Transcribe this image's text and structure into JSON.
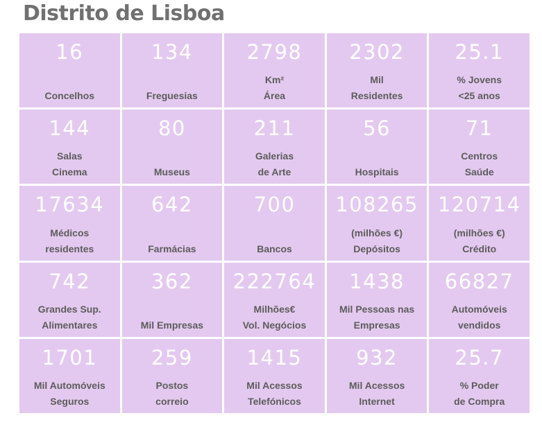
{
  "title": "Distrito de Lisboa",
  "cells": [
    {
      "value": "16",
      "line1": "",
      "line2": "Concelhos"
    },
    {
      "value": "134",
      "line1": "",
      "line2": "Freguesias"
    },
    {
      "value": "2798",
      "line1": "Km²",
      "line2": "Área"
    },
    {
      "value": "2302",
      "line1": "Mil",
      "line2": "Residentes"
    },
    {
      "value": "25.1",
      "line1": "% Jovens",
      "line2": "<25 anos"
    },
    {
      "value": "144",
      "line1": "Salas",
      "line2": "Cinema"
    },
    {
      "value": "80",
      "line1": "",
      "line2": "Museus"
    },
    {
      "value": "211",
      "line1": "Galerias",
      "line2": "de Arte"
    },
    {
      "value": "56",
      "line1": "",
      "line2": "Hospitais"
    },
    {
      "value": "71",
      "line1": "Centros",
      "line2": "Saúde"
    },
    {
      "value": "17634",
      "line1": "Médicos",
      "line2": "residentes"
    },
    {
      "value": "642",
      "line1": "",
      "line2": "Farmácias"
    },
    {
      "value": "700",
      "line1": "",
      "line2": "Bancos"
    },
    {
      "value": "108265",
      "line1": "(milhões €)",
      "line2": "Depósitos"
    },
    {
      "value": "120714",
      "line1": "(milhões €)",
      "line2": "Crédito"
    },
    {
      "value": "742",
      "line1": "Grandes Sup.",
      "line2": "Alimentares"
    },
    {
      "value": "362",
      "line1": "",
      "line2": "Mil Empresas"
    },
    {
      "value": "222764",
      "line1": "Milhões€",
      "line2": "Vol. Negócios"
    },
    {
      "value": "1438",
      "line1": "Mil Pessoas nas",
      "line2": "Empresas"
    },
    {
      "value": "66827",
      "line1": "Automóveis",
      "line2": "vendidos"
    },
    {
      "value": "1701",
      "line1": "Mil Automóveis",
      "line2": "Seguros"
    },
    {
      "value": "259",
      "line1": "Postos",
      "line2": "correio"
    },
    {
      "value": "1415",
      "line1": "Mil Acessos",
      "line2": "Telefónicos"
    },
    {
      "value": "932",
      "line1": "Mil Acessos",
      "line2": "Internet"
    },
    {
      "value": "25.7",
      "line1": "% Poder",
      "line2": "de Compra"
    }
  ]
}
